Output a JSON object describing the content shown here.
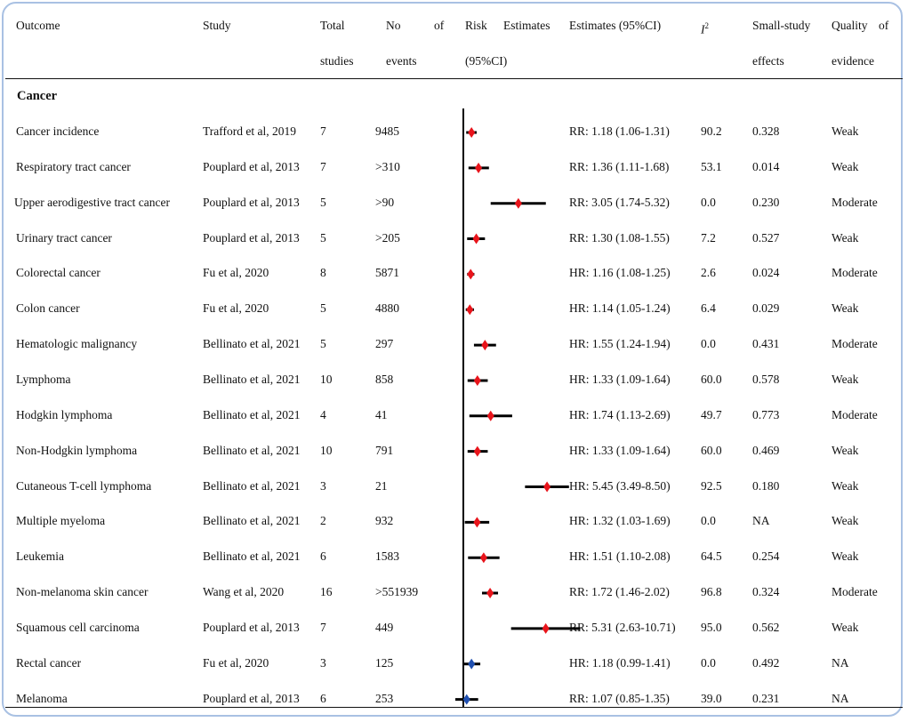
{
  "headers": {
    "outcome": "Outcome",
    "study": "Study",
    "total_1": "Total",
    "total_2": "studies",
    "events_1a": "No",
    "events_1b": "of",
    "events_2": "events",
    "risk_1a": "Risk",
    "risk_1b": "Estimates",
    "risk_2": "(95%CI)",
    "estimates": "Estimates (95%CI)",
    "i2": "I",
    "i2_sup": "2",
    "small_1": "Small-study",
    "small_2": "effects",
    "quality_1a": "Quality",
    "quality_1b": "of",
    "quality_2": "evidence"
  },
  "section_label": "Cancer",
  "colors": {
    "frame": "#a9c1e3",
    "red_marker": "#e8141b",
    "blue_marker": "#1f4fb0",
    "line": "#000000"
  },
  "rows": [
    {
      "outcome": "Cancer incidence",
      "study": "Trafford et al, 2019",
      "total": "7",
      "events": "9485",
      "estimate": "RR: 1.18 (1.06-1.31)",
      "i2": "90.2",
      "small": "0.328",
      "quality": "Weak",
      "point": 1.18,
      "low": 1.06,
      "high": 1.31,
      "marker": "red"
    },
    {
      "outcome": "Respiratory tract cancer",
      "study": "Pouplard et al, 2013",
      "total": "7",
      "events": ">310",
      "estimate": "RR: 1.36 (1.11-1.68)",
      "i2": "53.1",
      "small": "0.014",
      "quality": "Weak",
      "point": 1.36,
      "low": 1.11,
      "high": 1.68,
      "marker": "red"
    },
    {
      "outcome": "Upper aerodigestive tract cancer",
      "study": "Pouplard et al, 2013",
      "total": "5",
      "events": ">90",
      "estimate": "RR: 3.05 (1.74-5.32)",
      "i2": "0.0",
      "small": "0.230",
      "quality": "Moderate",
      "point": 3.05,
      "low": 1.74,
      "high": 5.32,
      "marker": "red"
    },
    {
      "outcome": "Urinary tract cancer",
      "study": "Pouplard et al, 2013",
      "total": "5",
      "events": ">205",
      "estimate": "RR: 1.30 (1.08-1.55)",
      "i2": "7.2",
      "small": "0.527",
      "quality": "Weak",
      "point": 1.3,
      "low": 1.08,
      "high": 1.55,
      "marker": "red"
    },
    {
      "outcome": "Colorectal cancer",
      "study": "Fu et al, 2020",
      "total": "8",
      "events": "5871",
      "estimate": "HR: 1.16 (1.08-1.25)",
      "i2": "2.6",
      "small": "0.024",
      "quality": "Moderate",
      "point": 1.16,
      "low": 1.08,
      "high": 1.25,
      "marker": "red"
    },
    {
      "outcome": "Colon cancer",
      "study": "Fu et al, 2020",
      "total": "5",
      "events": "4880",
      "estimate": "HR: 1.14 (1.05-1.24)",
      "i2": "6.4",
      "small": "0.029",
      "quality": "Weak",
      "point": 1.14,
      "low": 1.05,
      "high": 1.24,
      "marker": "red"
    },
    {
      "outcome": "Hematologic malignancy",
      "study": "Bellinato et al, 2021",
      "total": "5",
      "events": "297",
      "estimate": "HR: 1.55 (1.24-1.94)",
      "i2": "0.0",
      "small": "0.431",
      "quality": "Moderate",
      "point": 1.55,
      "low": 1.24,
      "high": 1.94,
      "marker": "red"
    },
    {
      "outcome": "Lymphoma",
      "study": "Bellinato et al, 2021",
      "total": "10",
      "events": "858",
      "estimate": "HR: 1.33 (1.09-1.64)",
      "i2": "60.0",
      "small": "0.578",
      "quality": "Weak",
      "point": 1.33,
      "low": 1.09,
      "high": 1.64,
      "marker": "red"
    },
    {
      "outcome": "Hodgkin lymphoma",
      "study": "Bellinato et al, 2021",
      "total": "4",
      "events": "41",
      "estimate": "HR: 1.74 (1.13-2.69)",
      "i2": "49.7",
      "small": "0.773",
      "quality": "Moderate",
      "point": 1.74,
      "low": 1.13,
      "high": 2.69,
      "marker": "red"
    },
    {
      "outcome": "Non-Hodgkin lymphoma",
      "study": "Bellinato et al, 2021",
      "total": "10",
      "events": "791",
      "estimate": "HR: 1.33 (1.09-1.64)",
      "i2": "60.0",
      "small": "0.469",
      "quality": "Weak",
      "point": 1.33,
      "low": 1.09,
      "high": 1.64,
      "marker": "red"
    },
    {
      "outcome": "Cutaneous T-cell lymphoma",
      "study": "Bellinato et al, 2021",
      "total": "3",
      "events": "21",
      "estimate": "HR: 5.45 (3.49-8.50)",
      "i2": "92.5",
      "small": "0.180",
      "quality": "Weak",
      "point": 5.45,
      "low": 3.49,
      "high": 8.5,
      "marker": "red"
    },
    {
      "outcome": "Multiple myeloma",
      "study": "Bellinato et al, 2021",
      "total": "2",
      "events": "932",
      "estimate": "HR: 1.32 (1.03-1.69)",
      "i2": "0.0",
      "small": "NA",
      "quality": "Weak",
      "point": 1.32,
      "low": 1.03,
      "high": 1.69,
      "marker": "red"
    },
    {
      "outcome": "Leukemia",
      "study": "Bellinato et al, 2021",
      "total": "6",
      "events": "1583",
      "estimate": "HR: 1.51 (1.10-2.08)",
      "i2": "64.5",
      "small": "0.254",
      "quality": "Weak",
      "point": 1.51,
      "low": 1.1,
      "high": 2.08,
      "marker": "red"
    },
    {
      "outcome": "Non-melanoma skin cancer",
      "study": "Wang et al, 2020",
      "total": "16",
      "events": ">551939",
      "estimate": "RR: 1.72 (1.46-2.02)",
      "i2": "96.8",
      "small": "0.324",
      "quality": "Moderate",
      "point": 1.72,
      "low": 1.46,
      "high": 2.02,
      "marker": "red"
    },
    {
      "outcome": "Squamous cell carcinoma",
      "study": "Pouplard et al, 2013",
      "total": "7",
      "events": "449",
      "estimate": "RR: 5.31 (2.63-10.71)",
      "i2": "95.0",
      "small": "0.562",
      "quality": "Weak",
      "point": 5.31,
      "low": 2.63,
      "high": 10.71,
      "marker": "red"
    },
    {
      "outcome": "Rectal cancer",
      "study": "Fu et al, 2020",
      "total": "3",
      "events": "125",
      "estimate": "HR: 1.18 (0.99-1.41)",
      "i2": "0.0",
      "small": "0.492",
      "quality": "NA",
      "point": 1.18,
      "low": 0.99,
      "high": 1.41,
      "marker": "blue"
    },
    {
      "outcome": "Melanoma",
      "study": "Pouplard et al, 2013",
      "total": "6",
      "events": "253",
      "estimate": "RR: 1.07 (0.85-1.35)",
      "i2": "39.0",
      "small": "0.231",
      "quality": "NA",
      "point": 1.07,
      "low": 0.85,
      "high": 1.35,
      "marker": "blue"
    }
  ],
  "chart_data": {
    "type": "scatter",
    "scale": "log",
    "reference_value": 1,
    "points": [
      {
        "label": "Cancer incidence",
        "value": 1.18,
        "low": 1.06,
        "high": 1.31
      },
      {
        "label": "Respiratory tract cancer",
        "value": 1.36,
        "low": 1.11,
        "high": 1.68
      },
      {
        "label": "Upper aerodigestive tract cancer",
        "value": 3.05,
        "low": 1.74,
        "high": 5.32
      },
      {
        "label": "Urinary tract cancer",
        "value": 1.3,
        "low": 1.08,
        "high": 1.55
      },
      {
        "label": "Colorectal cancer",
        "value": 1.16,
        "low": 1.08,
        "high": 1.25
      },
      {
        "label": "Colon cancer",
        "value": 1.14,
        "low": 1.05,
        "high": 1.24
      },
      {
        "label": "Hematologic malignancy",
        "value": 1.55,
        "low": 1.24,
        "high": 1.94
      },
      {
        "label": "Lymphoma",
        "value": 1.33,
        "low": 1.09,
        "high": 1.64
      },
      {
        "label": "Hodgkin lymphoma",
        "value": 1.74,
        "low": 1.13,
        "high": 2.69
      },
      {
        "label": "Non-Hodgkin lymphoma",
        "value": 1.33,
        "low": 1.09,
        "high": 1.64
      },
      {
        "label": "Cutaneous T-cell lymphoma",
        "value": 5.45,
        "low": 3.49,
        "high": 8.5
      },
      {
        "label": "Multiple myeloma",
        "value": 1.32,
        "low": 1.03,
        "high": 1.69
      },
      {
        "label": "Leukemia",
        "value": 1.51,
        "low": 1.1,
        "high": 2.08
      },
      {
        "label": "Non-melanoma skin cancer",
        "value": 1.72,
        "low": 1.46,
        "high": 2.02
      },
      {
        "label": "Squamous cell carcinoma",
        "value": 5.31,
        "low": 2.63,
        "high": 10.71
      },
      {
        "label": "Rectal cancer",
        "value": 1.18,
        "low": 0.99,
        "high": 1.41
      },
      {
        "label": "Melanoma",
        "value": 1.07,
        "low": 0.85,
        "high": 1.35
      }
    ]
  }
}
